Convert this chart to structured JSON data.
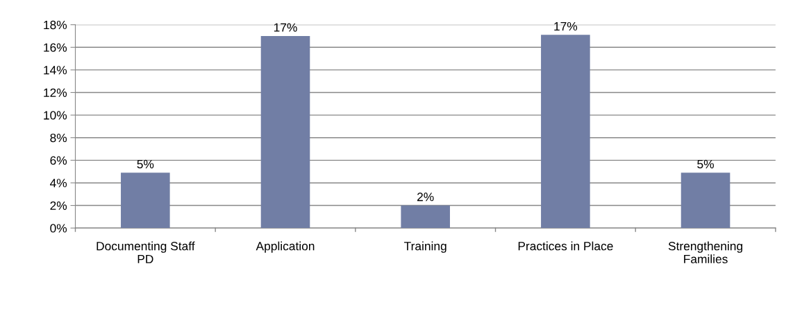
{
  "chart_data": {
    "type": "bar",
    "categories": [
      "Documenting Staff\nPD",
      "Application",
      "Training",
      "Practices in Place",
      "Strengthening\nFamilies"
    ],
    "values": [
      4.9,
      17,
      2,
      17.1,
      4.9
    ],
    "value_labels": [
      "5%",
      "17%",
      "2%",
      "17%",
      "5%"
    ],
    "color": "#717ea5",
    "ylim": [
      0,
      18
    ],
    "yticks": [
      {
        "value": 0,
        "label": "0%"
      },
      {
        "value": 2,
        "label": "2%"
      },
      {
        "value": 4,
        "label": "4%"
      },
      {
        "value": 6,
        "label": "6%"
      },
      {
        "value": 8,
        "label": "8%"
      },
      {
        "value": 10,
        "label": "10%"
      },
      {
        "value": 12,
        "label": "12%"
      },
      {
        "value": 14,
        "label": "14%"
      },
      {
        "value": 16,
        "label": "16%"
      },
      {
        "value": 18,
        "label": "18%"
      }
    ],
    "grid": "y"
  }
}
